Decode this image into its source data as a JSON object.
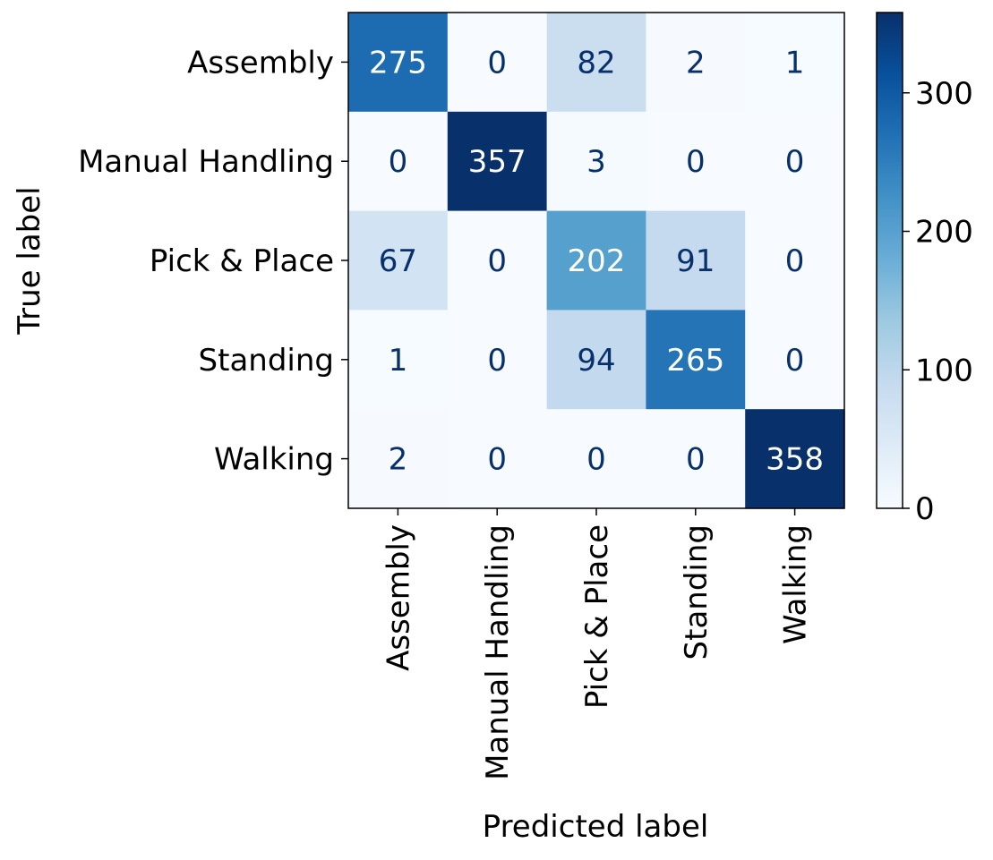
{
  "chart_data": {
    "type": "heatmap",
    "title": "",
    "xlabel": "Predicted label",
    "ylabel": "True label",
    "x_categories": [
      "Assembly",
      "Manual Handling",
      "Pick & Place",
      "Standing",
      "Walking"
    ],
    "y_categories": [
      "Assembly",
      "Manual Handling",
      "Pick & Place",
      "Standing",
      "Walking"
    ],
    "values": [
      [
        275,
        0,
        82,
        2,
        1
      ],
      [
        0,
        357,
        3,
        0,
        0
      ],
      [
        67,
        0,
        202,
        91,
        0
      ],
      [
        1,
        0,
        94,
        265,
        0
      ],
      [
        2,
        0,
        0,
        0,
        358
      ]
    ],
    "colormap": "Blues",
    "color_range": [
      0,
      358
    ],
    "colorbar": {
      "ticks": [
        0,
        100,
        200,
        300
      ],
      "tick_labels": [
        "0",
        "100",
        "200",
        "300"
      ]
    },
    "grid": false,
    "legend": "none"
  }
}
